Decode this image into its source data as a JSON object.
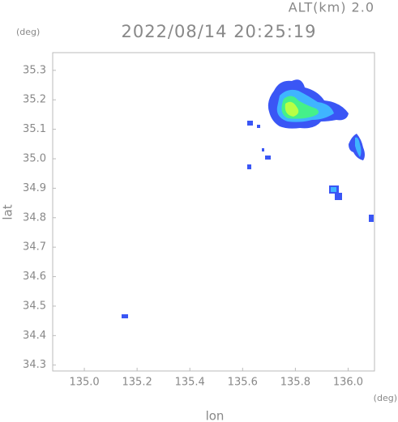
{
  "chart_data": {
    "type": "radar",
    "title": "2022/08/14 20:25:19",
    "altitude": "ALT(km) 2.0",
    "xlabel": "lon",
    "ylabel": "lat",
    "xunit": "(deg)",
    "yunit": "(deg)",
    "xlim": [
      134.88,
      136.1
    ],
    "ylim": [
      34.28,
      35.36
    ],
    "xticks": [
      {
        "value": 135,
        "label": "135.0"
      },
      135.2,
      135.4,
      135.6,
      135.8,
      {
        "value": 136,
        "label": "136.0"
      }
    ],
    "yticks": [
      34.3,
      34.4,
      34.5,
      34.6,
      34.7,
      34.8,
      34.9,
      {
        "value": 35,
        "label": "35.0"
      },
      35.1,
      35.2,
      35.3
    ]
  }
}
